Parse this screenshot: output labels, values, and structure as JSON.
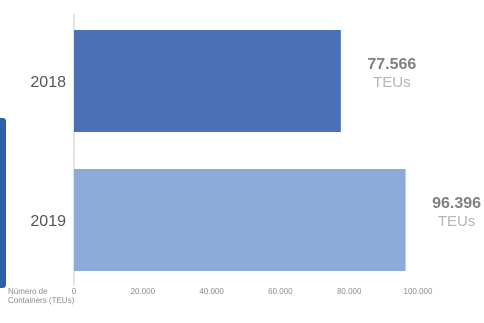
{
  "chart_data": {
    "type": "bar",
    "orientation": "horizontal",
    "categories": [
      "2018",
      "2019"
    ],
    "values": [
      77566,
      96396
    ],
    "value_labels": [
      "77.566",
      "96.396"
    ],
    "unit": "TEUs",
    "xlim": [
      0,
      100000
    ],
    "xticks": [
      0,
      20000,
      40000,
      60000,
      80000,
      100000
    ],
    "xtick_labels": [
      "0",
      "20.000",
      "40.000",
      "60.000",
      "80.000",
      "100.000"
    ],
    "xlabel": [
      "Número de",
      "Containers (TEUs)"
    ],
    "bar_colors": [
      "#4c70b7",
      "#8eaadb"
    ],
    "grid": false
  }
}
